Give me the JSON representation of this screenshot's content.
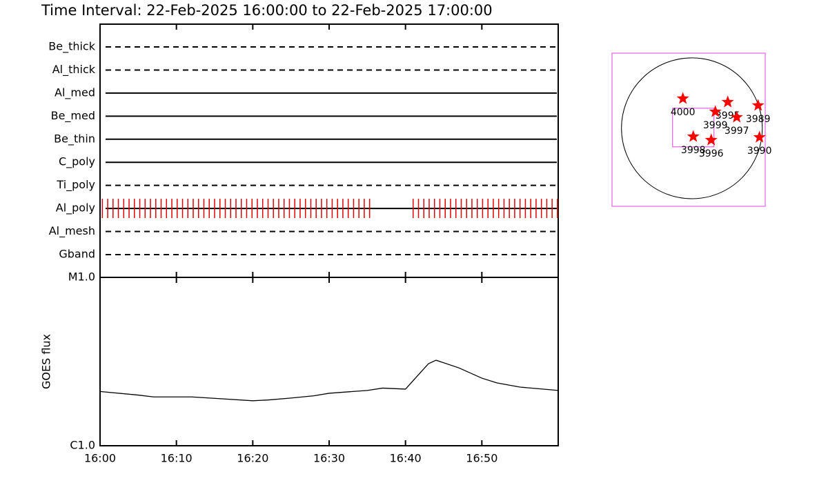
{
  "title": "Time Interval: 22-Feb-2025 16:00:00 to 22-Feb-2025 17:00:00",
  "chart_data": [
    {
      "type": "timeline",
      "filters": [
        {
          "name": "Be_thick",
          "style": "dashed"
        },
        {
          "name": "Al_thick",
          "style": "dashed"
        },
        {
          "name": "Al_med",
          "style": "solid"
        },
        {
          "name": "Be_med",
          "style": "solid"
        },
        {
          "name": "Be_thin",
          "style": "solid"
        },
        {
          "name": "C_poly",
          "style": "solid"
        },
        {
          "name": "Ti_poly",
          "style": "dashed"
        },
        {
          "name": "Al_poly",
          "style": "solid"
        },
        {
          "name": "Al_mesh",
          "style": "dashed"
        },
        {
          "name": "Gband",
          "style": "dashed"
        }
      ],
      "observations": {
        "filter": 7,
        "color": "#e00000",
        "x": [
          0.3,
          1.0,
          1.7,
          2.4,
          3.1,
          3.8,
          4.5,
          5.2,
          5.9,
          6.6,
          7.3,
          8.0,
          8.7,
          9.4,
          10.1,
          10.8,
          11.5,
          12.2,
          12.9,
          13.6,
          14.3,
          15.0,
          15.7,
          16.4,
          17.1,
          17.8,
          18.5,
          19.2,
          19.9,
          20.6,
          21.3,
          22.0,
          22.7,
          23.4,
          24.1,
          24.8,
          25.5,
          26.2,
          26.9,
          27.6,
          28.3,
          29.0,
          29.7,
          30.4,
          31.1,
          31.8,
          32.5,
          33.2,
          33.9,
          34.6,
          35.3,
          41.0,
          41.7,
          42.4,
          43.1,
          43.8,
          44.5,
          45.2,
          45.9,
          46.6,
          47.3,
          48.0,
          48.7,
          49.4,
          50.1,
          50.8,
          51.5,
          52.2,
          52.9,
          53.6,
          54.3,
          55.0,
          55.7,
          56.4,
          57.1,
          57.8,
          58.5,
          59.2,
          59.9
        ]
      },
      "xlim": [
        0,
        60
      ],
      "xticks": [
        0,
        10,
        20,
        30,
        40,
        50
      ]
    },
    {
      "type": "line",
      "ylabel": "GOES flux",
      "x": [
        0,
        5,
        7,
        12,
        16,
        20,
        22,
        25,
        28,
        30,
        35,
        37,
        40,
        43,
        44,
        47,
        50,
        52,
        55,
        59,
        60
      ],
      "series": [
        {
          "color": "#000000",
          "values": [
            2.1e-06,
            2e-06,
            1.95e-06,
            1.95e-06,
            1.9e-06,
            1.85e-06,
            1.87e-06,
            1.92e-06,
            1.98e-06,
            2.05e-06,
            2.13e-06,
            2.2e-06,
            2.17e-06,
            3.07e-06,
            3.22e-06,
            2.9e-06,
            2.52e-06,
            2.36e-06,
            2.23e-06,
            2.15e-06,
            2.13e-06
          ]
        }
      ],
      "log": true,
      "xlim": [
        0,
        60
      ],
      "xticks": [
        {
          "value": 0,
          "label": "16:00"
        },
        {
          "value": 10,
          "label": "16:10"
        },
        {
          "value": 20,
          "label": "16:20"
        },
        {
          "value": 30,
          "label": "16:30"
        },
        {
          "value": 40,
          "label": "16:40"
        },
        {
          "value": 50,
          "label": "16:50"
        }
      ],
      "ylim": [
        1e-06,
        1e-05
      ],
      "yticks": [
        {
          "value": 1e-06,
          "label": "C1.0"
        },
        {
          "value": 1e-05,
          "label": "M1.0"
        }
      ]
    },
    {
      "type": "scatter",
      "color": "#ff0000",
      "frame_color": "#e040e0",
      "xlim": [
        -1100,
        1010
      ],
      "ylim": [
        -1075,
        1035
      ],
      "solar_radius": 970,
      "fov": {
        "x": 19,
        "y": 10,
        "width": 570,
        "height": 532
      },
      "names": [
        "4000",
        "3995",
        "3999",
        "3997",
        "3989",
        "3990",
        "3998",
        "3996"
      ],
      "x": [
        -124,
        494,
        323,
        618,
        912,
        931,
        19,
        266
      ],
      "y": [
        409,
        361,
        228,
        152,
        314,
        -124,
        -114,
        -162
      ]
    }
  ]
}
